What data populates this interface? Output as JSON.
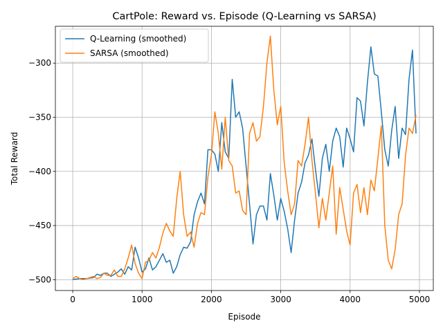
{
  "chart_data": {
    "type": "line",
    "title": "CartPole: Reward vs. Episode (Q-Learning vs SARSA)",
    "xlabel": "Episode",
    "ylabel": "Total Reward",
    "xlim": [
      -250,
      5200
    ],
    "ylim": [
      -510,
      -266
    ],
    "xticks": [
      0,
      1000,
      2000,
      3000,
      4000,
      5000
    ],
    "yticks": [
      -500,
      -450,
      -400,
      -350,
      -300
    ],
    "grid": true,
    "legend_position": "upper-left",
    "series": [
      {
        "name": "Q-Learning (smoothed)",
        "color": "#1f77b4",
        "x": [
          0,
          100,
          200,
          300,
          350,
          400,
          450,
          500,
          550,
          600,
          650,
          700,
          750,
          800,
          850,
          900,
          950,
          1000,
          1050,
          1100,
          1150,
          1200,
          1250,
          1300,
          1350,
          1400,
          1450,
          1500,
          1550,
          1600,
          1650,
          1700,
          1750,
          1800,
          1850,
          1900,
          1950,
          2000,
          2050,
          2100,
          2150,
          2200,
          2250,
          2300,
          2350,
          2400,
          2450,
          2500,
          2550,
          2600,
          2650,
          2700,
          2750,
          2800,
          2850,
          2900,
          2950,
          3000,
          3050,
          3100,
          3150,
          3200,
          3250,
          3300,
          3350,
          3400,
          3450,
          3500,
          3550,
          3600,
          3650,
          3700,
          3750,
          3800,
          3850,
          3900,
          3950,
          4000,
          4050,
          4100,
          4150,
          4200,
          4250,
          4300,
          4350,
          4400,
          4450,
          4500,
          4550,
          4600,
          4650,
          4700,
          4750,
          4800,
          4850,
          4900,
          4950
        ],
        "y": [
          -500,
          -499,
          -499,
          -498,
          -495,
          -496,
          -494,
          -494,
          -497,
          -495,
          -493,
          -490,
          -495,
          -488,
          -491,
          -470,
          -480,
          -493,
          -490,
          -480,
          -491,
          -488,
          -482,
          -476,
          -484,
          -482,
          -494,
          -488,
          -477,
          -470,
          -471,
          -465,
          -440,
          -428,
          -420,
          -430,
          -380,
          -380,
          -384,
          -400,
          -355,
          -382,
          -388,
          -315,
          -350,
          -345,
          -360,
          -395,
          -430,
          -467,
          -440,
          -432,
          -432,
          -445,
          -402,
          -422,
          -445,
          -425,
          -437,
          -453,
          -475,
          -445,
          -420,
          -410,
          -392,
          -385,
          -370,
          -398,
          -423,
          -388,
          -375,
          -400,
          -372,
          -360,
          -368,
          -396,
          -360,
          -370,
          -382,
          -332,
          -335,
          -358,
          -318,
          -285,
          -310,
          -312,
          -345,
          -380,
          -395,
          -362,
          -340,
          -388,
          -360,
          -366,
          -315,
          -288,
          -365
        ]
      },
      {
        "name": "SARSA (smoothed)",
        "color": "#ff7f0e",
        "x": [
          0,
          50,
          100,
          150,
          200,
          250,
          300,
          350,
          400,
          450,
          500,
          550,
          600,
          650,
          700,
          750,
          800,
          850,
          900,
          950,
          1000,
          1050,
          1100,
          1150,
          1200,
          1250,
          1300,
          1350,
          1400,
          1450,
          1500,
          1550,
          1600,
          1650,
          1700,
          1750,
          1800,
          1850,
          1900,
          1950,
          2000,
          2050,
          2100,
          2150,
          2200,
          2250,
          2300,
          2350,
          2400,
          2450,
          2500,
          2550,
          2600,
          2650,
          2700,
          2750,
          2800,
          2850,
          2900,
          2950,
          3000,
          3050,
          3100,
          3150,
          3200,
          3250,
          3300,
          3350,
          3400,
          3450,
          3500,
          3550,
          3600,
          3650,
          3700,
          3750,
          3800,
          3850,
          3900,
          3950,
          4000,
          4050,
          4100,
          4150,
          4200,
          4250,
          4300,
          4350,
          4400,
          4450,
          4500,
          4550,
          4600,
          4650,
          4700,
          4750,
          4800,
          4850,
          4900,
          4950
        ],
        "y": [
          -499,
          -497,
          -499,
          -500,
          -499,
          -498,
          -497,
          -499,
          -498,
          -494,
          -496,
          -496,
          -491,
          -497,
          -497,
          -490,
          -480,
          -468,
          -485,
          -494,
          -499,
          -484,
          -482,
          -475,
          -480,
          -470,
          -457,
          -448,
          -455,
          -460,
          -425,
          -400,
          -440,
          -460,
          -456,
          -470,
          -448,
          -438,
          -440,
          -405,
          -385,
          -345,
          -365,
          -398,
          -350,
          -390,
          -395,
          -420,
          -418,
          -436,
          -440,
          -365,
          -355,
          -372,
          -368,
          -340,
          -300,
          -275,
          -325,
          -357,
          -340,
          -392,
          -418,
          -440,
          -430,
          -390,
          -395,
          -375,
          -350,
          -390,
          -420,
          -452,
          -425,
          -445,
          -420,
          -395,
          -458,
          -415,
          -435,
          -455,
          -468,
          -420,
          -412,
          -438,
          -415,
          -440,
          -408,
          -418,
          -388,
          -358,
          -450,
          -482,
          -490,
          -472,
          -440,
          -430,
          -385,
          -360,
          -365,
          -348
        ]
      }
    ]
  }
}
